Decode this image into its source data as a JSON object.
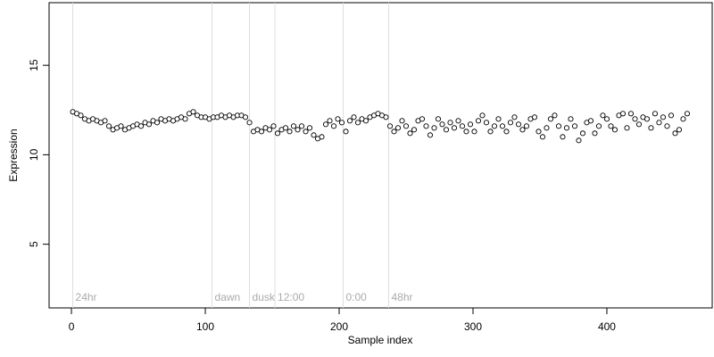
{
  "chart_data": {
    "type": "scatter",
    "xlabel": "Sample index",
    "ylabel": "Expression",
    "xlim": [
      -16.7,
      478.7
    ],
    "ylim": [
      1.44,
      18.5
    ],
    "xticks": [
      0,
      100,
      200,
      300,
      400
    ],
    "yticks": [
      5,
      10,
      15
    ],
    "markers": [
      {
        "x": 1,
        "label": "24hr"
      },
      {
        "x": 105,
        "label": "dawn"
      },
      {
        "x": 133,
        "label": "dusk"
      },
      {
        "x": 152,
        "label": "12:00"
      },
      {
        "x": 203,
        "label": "0:00"
      },
      {
        "x": 237,
        "label": "48hr"
      }
    ],
    "series": [
      {
        "color": "#000000",
        "x": [
          1,
          4,
          7,
          10,
          13,
          16,
          19,
          22,
          25,
          28,
          31,
          34,
          37,
          40,
          43,
          46,
          49,
          52,
          55,
          58,
          61,
          64,
          67,
          70,
          73,
          76,
          79,
          82,
          85,
          88,
          91,
          94,
          97,
          100,
          103,
          106,
          109,
          112,
          115,
          118,
          121,
          124,
          127,
          130,
          133,
          136,
          139,
          142,
          145,
          148,
          151,
          154,
          157,
          160,
          163,
          166,
          169,
          172,
          175,
          178,
          181,
          184,
          187,
          190,
          193,
          196,
          199,
          202,
          205,
          208,
          211,
          214,
          217,
          220,
          223,
          226,
          229,
          232,
          235,
          238,
          241,
          244,
          247,
          250,
          253,
          256,
          259,
          262,
          265,
          268,
          271,
          274,
          277,
          280,
          283,
          286,
          289,
          292,
          295,
          298,
          301,
          304,
          307,
          310,
          313,
          316,
          319,
          322,
          325,
          328,
          331,
          334,
          337,
          340,
          343,
          346,
          349,
          352,
          355,
          358,
          361,
          364,
          367,
          370,
          373,
          376,
          379,
          382,
          385,
          388,
          391,
          394,
          397,
          400,
          403,
          406,
          409,
          412,
          415,
          418,
          421,
          424,
          427,
          430,
          433,
          436,
          439,
          442,
          445,
          448,
          451,
          454,
          457,
          460
        ],
        "values": [
          12.4,
          12.3,
          12.2,
          12.0,
          11.9,
          12.0,
          11.9,
          11.8,
          11.9,
          11.6,
          11.4,
          11.5,
          11.6,
          11.4,
          11.5,
          11.6,
          11.7,
          11.6,
          11.8,
          11.7,
          11.9,
          11.8,
          12.0,
          11.9,
          12.0,
          11.9,
          12.0,
          12.1,
          12.0,
          12.3,
          12.4,
          12.2,
          12.1,
          12.1,
          12.0,
          12.1,
          12.1,
          12.2,
          12.1,
          12.2,
          12.1,
          12.2,
          12.2,
          12.1,
          11.8,
          11.3,
          11.4,
          11.3,
          11.5,
          11.4,
          11.6,
          11.2,
          11.4,
          11.5,
          11.3,
          11.6,
          11.4,
          11.6,
          11.3,
          11.5,
          11.1,
          10.9,
          11.0,
          11.7,
          11.9,
          11.6,
          12.0,
          11.8,
          11.3,
          11.9,
          12.1,
          11.8,
          12.0,
          11.9,
          12.1,
          12.2,
          12.3,
          12.2,
          12.1,
          11.6,
          11.3,
          11.5,
          11.9,
          11.6,
          11.2,
          11.4,
          11.9,
          12.0,
          11.6,
          11.1,
          11.5,
          12.0,
          11.7,
          11.4,
          11.8,
          11.5,
          11.9,
          11.6,
          11.3,
          11.7,
          11.3,
          11.9,
          12.2,
          11.8,
          11.3,
          11.6,
          12.0,
          11.6,
          11.3,
          11.8,
          12.1,
          11.7,
          11.4,
          11.6,
          12.0,
          12.1,
          11.3,
          11.0,
          11.5,
          12.0,
          12.2,
          11.6,
          11.0,
          11.5,
          12.0,
          11.6,
          10.8,
          11.2,
          11.8,
          11.9,
          11.2,
          11.6,
          12.2,
          12.0,
          11.6,
          11.4,
          12.2,
          12.3,
          11.5,
          12.3,
          12.0,
          11.7,
          12.1,
          12.0,
          11.5,
          12.3,
          11.8,
          12.1,
          11.6,
          12.2,
          11.2,
          11.4,
          12.0,
          12.3
        ]
      }
    ]
  }
}
